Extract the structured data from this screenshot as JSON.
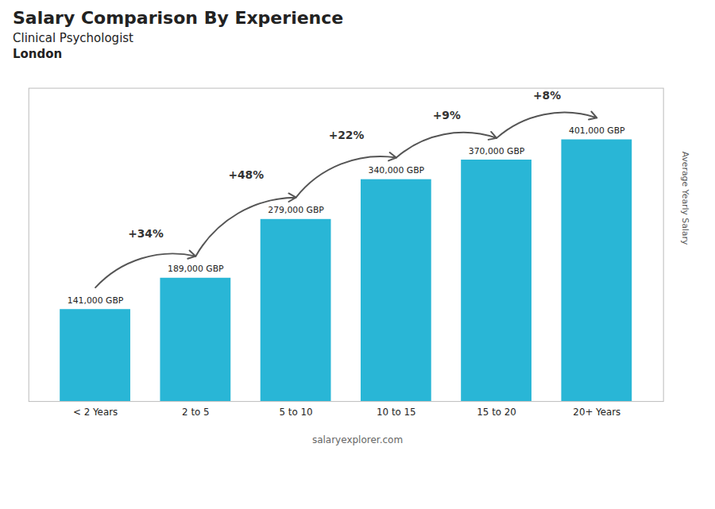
{
  "chart_data": {
    "type": "bar",
    "title": "Salary Comparison By Experience",
    "subtitle": "Clinical Psychologist",
    "annotations": [
      {
        "text": "London"
      },
      {
        "text": "+34%",
        "from": "< 2 Years",
        "to": "2 to 5"
      },
      {
        "text": "+48%",
        "from": "2 to 5",
        "to": "5 to 10"
      },
      {
        "text": "+22%",
        "from": "5 to 10",
        "to": "10 to 15"
      },
      {
        "text": "+9%",
        "from": "10 to 15",
        "to": "15 to 20"
      },
      {
        "text": "+8%",
        "from": "15 to 20",
        "to": "20+ Years"
      }
    ],
    "caption": "salaryexplorer.com",
    "ylabel": "Average Yearly Salary",
    "categories": [
      "< 2 Years",
      "2 to 5",
      "5 to 10",
      "10 to 15",
      "15 to 20",
      "20+ Years"
    ],
    "values": [
      141000,
      189000,
      279000,
      340000,
      370000,
      401000
    ],
    "value_labels": [
      "141,000 GBP",
      "189,000 GBP",
      "279,000 GBP",
      "340,000 GBP",
      "370,000 GBP",
      "401,000 GBP"
    ],
    "data_labels": true,
    "color": "#29b6d6",
    "ylim": [
      0,
      480000
    ],
    "grid": false,
    "tick_labels": "x"
  }
}
